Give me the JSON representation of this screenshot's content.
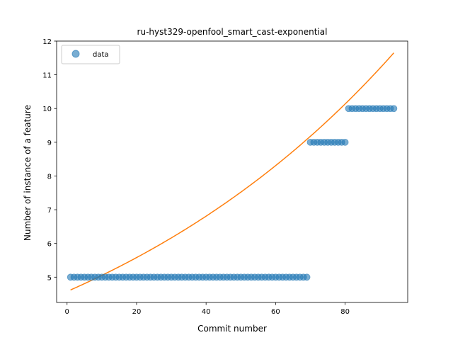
{
  "chart_data": {
    "type": "scatter",
    "title": "ru-hyst329-openfool_smart_cast-exponential",
    "xlabel": "Commit number",
    "ylabel": "Number of instance of a feature",
    "xlim": [
      -3,
      98
    ],
    "ylim": [
      4.25,
      12
    ],
    "xticks": [
      0,
      20,
      40,
      60,
      80
    ],
    "yticks": [
      5,
      6,
      7,
      8,
      9,
      10,
      11,
      12
    ],
    "grid": false,
    "legend": {
      "placement": "top-left",
      "entries": [
        "data"
      ]
    },
    "series": [
      {
        "name": "data",
        "kind": "points",
        "color": "#1f77b4",
        "segments": [
          {
            "x_from": 1,
            "x_to": 69,
            "y": 5
          },
          {
            "x_from": 70,
            "x_to": 80,
            "y": 9
          },
          {
            "x_from": 81,
            "x_to": 94,
            "y": 10
          }
        ]
      },
      {
        "kind": "line",
        "color": "#ff7f0e",
        "fit": {
          "model": "exponential",
          "y_at_1": 4.62,
          "y_at_94": 11.65,
          "x_range": [
            1,
            94
          ]
        }
      }
    ]
  }
}
